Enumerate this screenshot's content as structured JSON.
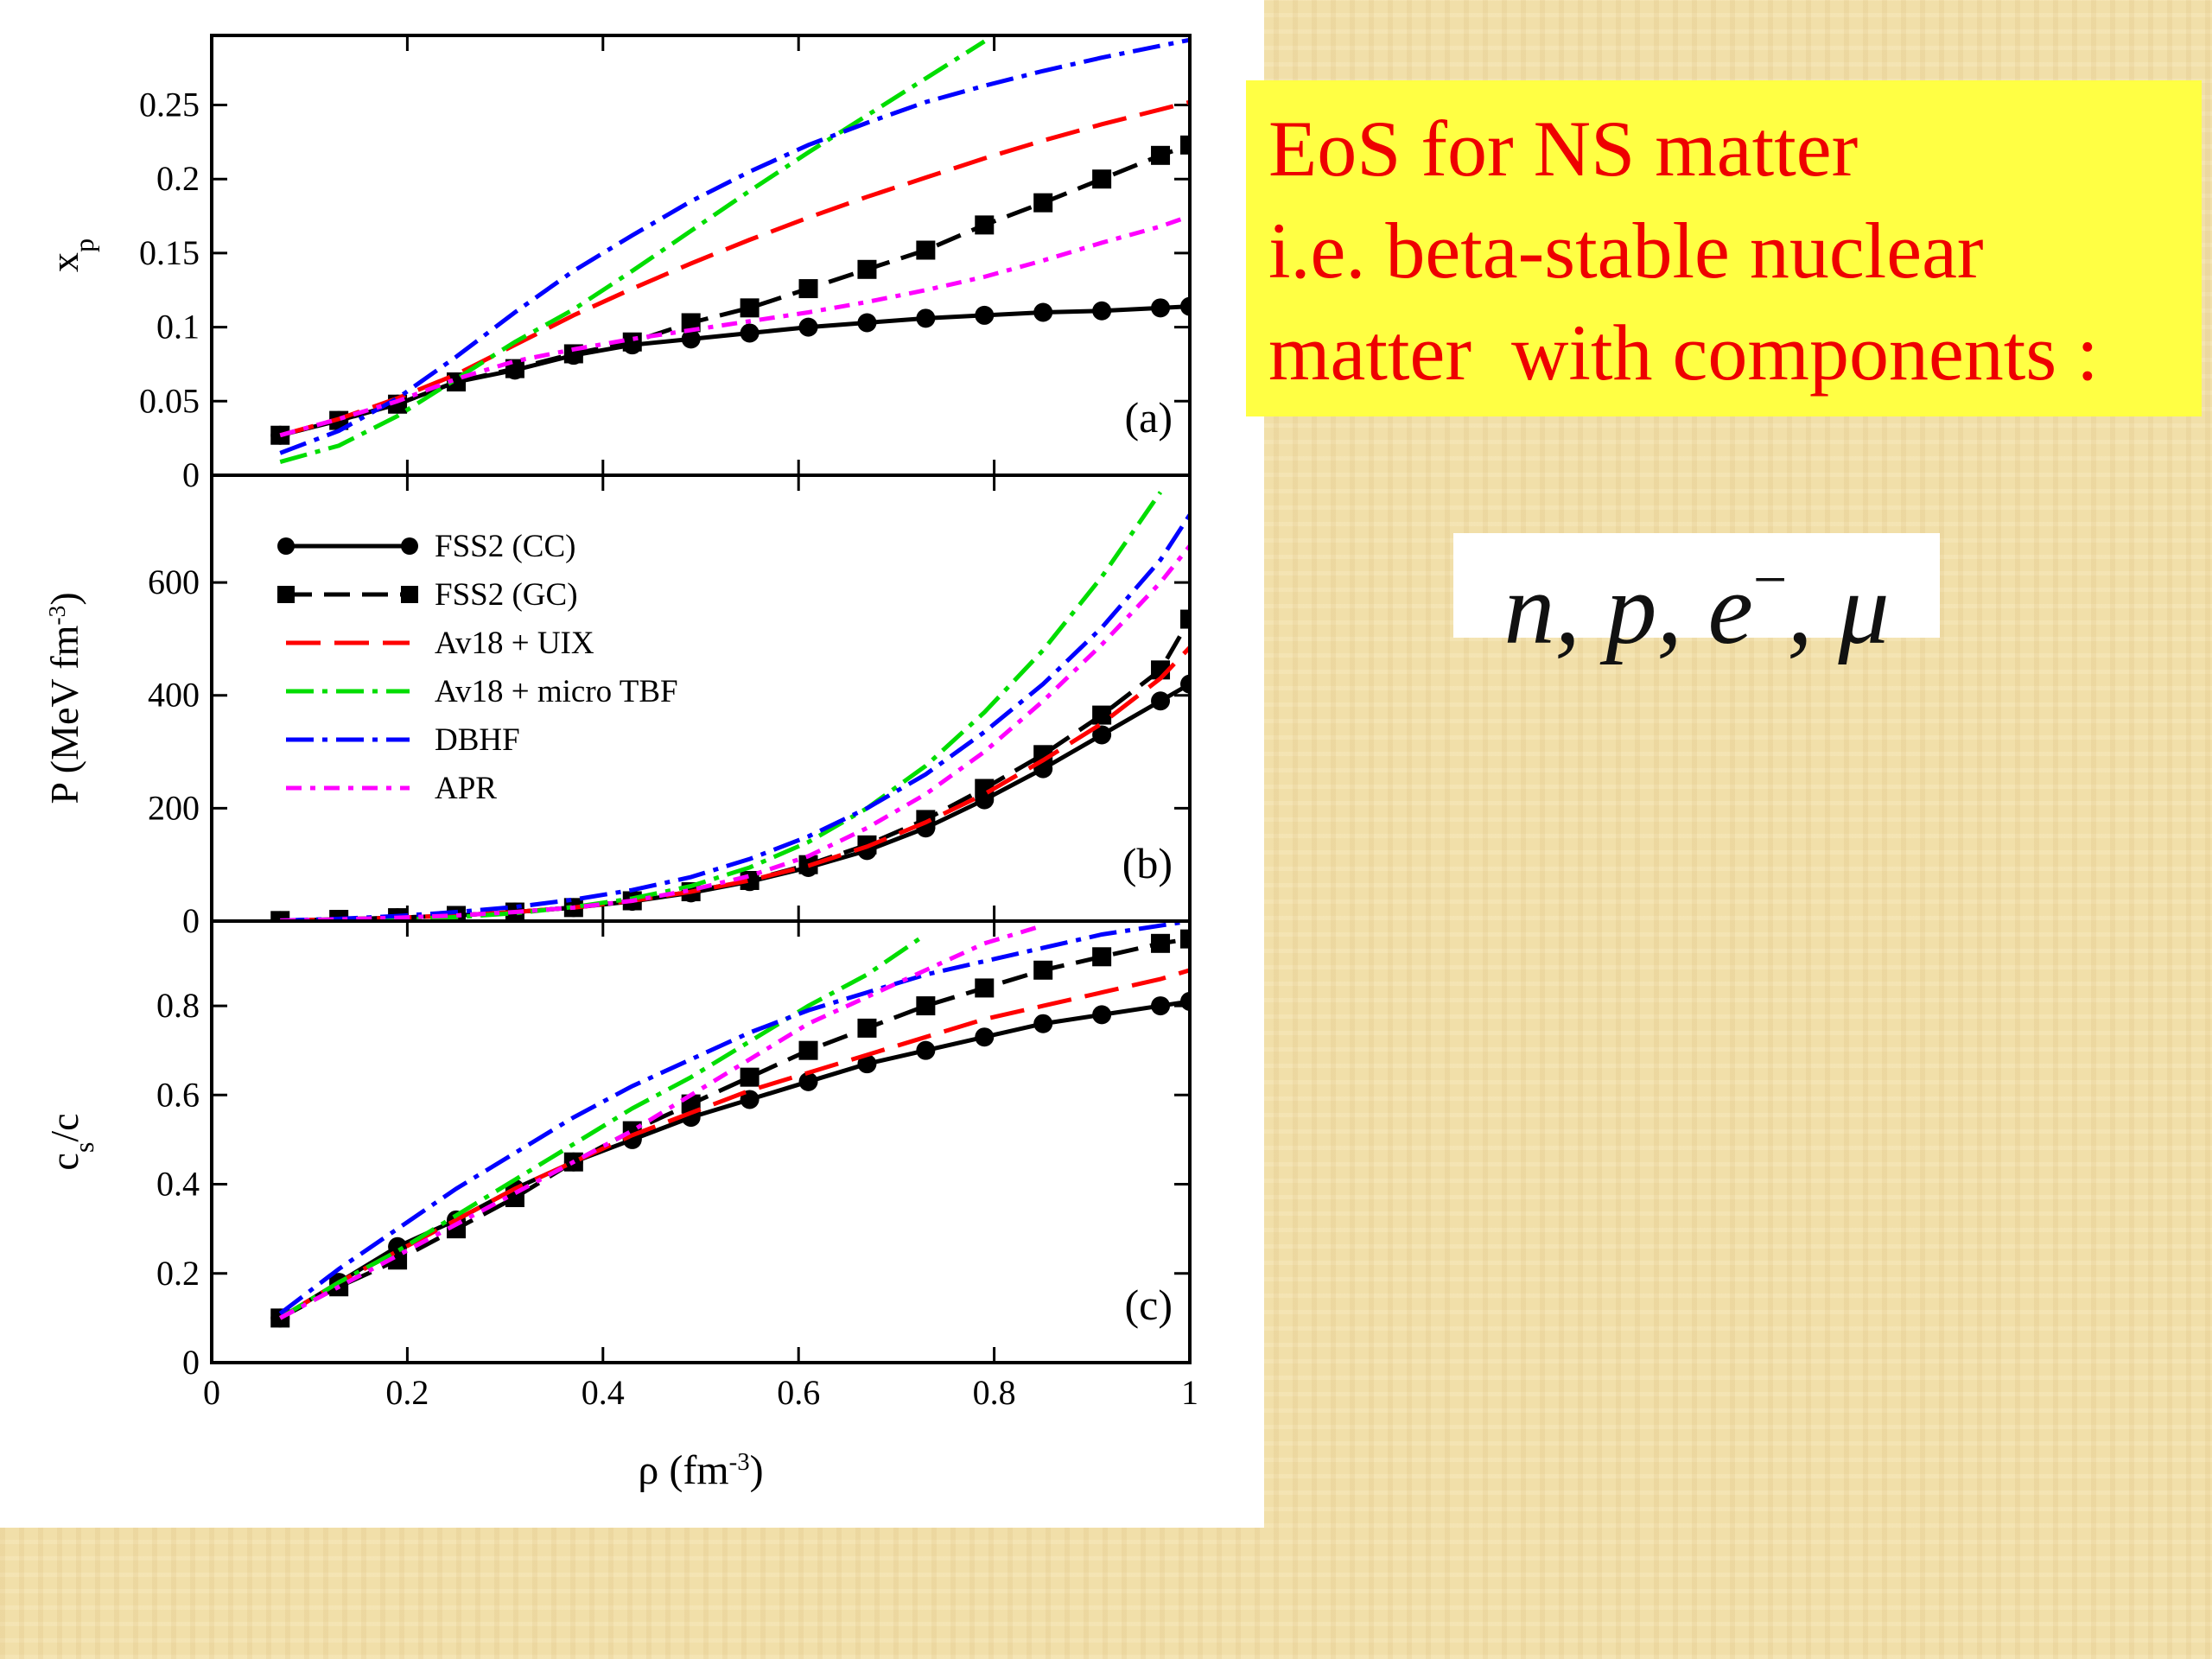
{
  "chart_data": [
    {
      "type": "line",
      "ylabel": [
        {
          "text": "x"
        },
        {
          "text": "p",
          "script": "sub"
        }
      ],
      "annotation": "(a)",
      "x": [
        0.07,
        0.13,
        0.19,
        0.25,
        0.31,
        0.37,
        0.43,
        0.49,
        0.55,
        0.61,
        0.67,
        0.73,
        0.79,
        0.85,
        0.91,
        0.97,
        1.0
      ],
      "xlim": [
        0,
        1
      ],
      "ylim": [
        0,
        0.297
      ],
      "yticks": [
        0,
        0.05,
        0.1,
        0.15,
        0.2,
        0.25
      ],
      "series": [
        {
          "color": "#000000",
          "dash": "solid",
          "marker": "circle",
          "values": [
            0.027,
            0.037,
            0.048,
            0.063,
            0.071,
            0.081,
            0.088,
            0.092,
            0.096,
            0.1,
            0.103,
            0.106,
            0.108,
            0.11,
            0.111,
            0.113,
            0.114
          ]
        },
        {
          "color": "#000000",
          "dash": "dash",
          "marker": "square",
          "values": [
            0.027,
            0.037,
            0.048,
            0.063,
            0.072,
            0.082,
            0.09,
            0.103,
            0.113,
            0.126,
            0.139,
            0.152,
            0.169,
            0.184,
            0.2,
            0.216,
            0.223
          ]
        },
        {
          "color": "#ff0000",
          "dash": "longdash",
          "marker": "none",
          "values": [
            0.027,
            0.038,
            0.052,
            0.068,
            0.088,
            0.108,
            0.126,
            0.143,
            0.159,
            0.174,
            0.188,
            0.201,
            0.214,
            0.226,
            0.237,
            0.247,
            0.252
          ]
        },
        {
          "color": "#00dd00",
          "dash": "dashdot",
          "marker": "none",
          "values": [
            0.009,
            0.02,
            0.04,
            0.065,
            0.09,
            0.112,
            0.138,
            0.165,
            0.192,
            0.218,
            0.243,
            0.268,
            0.293,
            null,
            null,
            null,
            null
          ]
        },
        {
          "color": "#0000ff",
          "dash": "dashdot",
          "marker": "none",
          "values": [
            0.015,
            0.03,
            0.052,
            0.08,
            0.11,
            0.138,
            0.162,
            0.185,
            0.205,
            0.223,
            0.238,
            0.252,
            0.263,
            0.273,
            0.282,
            0.29,
            0.294
          ]
        },
        {
          "color": "#ff00ff",
          "dash": "dotdash",
          "marker": "none",
          "values": [
            0.027,
            0.038,
            0.05,
            0.065,
            0.077,
            0.085,
            0.092,
            0.098,
            0.104,
            0.11,
            0.117,
            0.125,
            0.134,
            0.145,
            0.157,
            0.168,
            0.175
          ]
        }
      ]
    },
    {
      "type": "line",
      "ylabel": [
        {
          "text": "P (MeV fm"
        },
        {
          "text": "-3",
          "script": "sup"
        },
        {
          "text": ")"
        }
      ],
      "annotation": "(b)",
      "legend": "upper left",
      "x": [
        0.07,
        0.13,
        0.19,
        0.25,
        0.31,
        0.37,
        0.43,
        0.49,
        0.55,
        0.61,
        0.67,
        0.73,
        0.79,
        0.85,
        0.91,
        0.97,
        1.0
      ],
      "xlim": [
        0,
        1
      ],
      "ylim": [
        0,
        790
      ],
      "yticks": [
        0,
        200,
        400,
        600
      ],
      "series": [
        {
          "name": "FSS2 (CC)",
          "color": "#000000",
          "dash": "solid",
          "marker": "circle",
          "values": [
            1,
            3,
            6,
            10,
            16,
            24,
            35,
            50,
            70,
            95,
            125,
            165,
            215,
            270,
            330,
            390,
            420
          ]
        },
        {
          "name": "FSS2 (GC)",
          "color": "#000000",
          "dash": "dash",
          "marker": "square",
          "values": [
            1,
            3,
            6,
            10,
            16,
            24,
            36,
            52,
            72,
            100,
            135,
            180,
            235,
            295,
            365,
            445,
            535
          ]
        },
        {
          "name": "Av18 + UIX",
          "color": "#ff0000",
          "dash": "longdash",
          "marker": "none",
          "values": [
            1,
            3,
            6,
            10,
            16,
            24,
            36,
            52,
            72,
            98,
            132,
            175,
            225,
            285,
            350,
            430,
            485
          ]
        },
        {
          "name": "Av18 + micro TBF",
          "color": "#00dd00",
          "dash": "dashdot",
          "marker": "none",
          "values": [
            0,
            1,
            3,
            7,
            14,
            25,
            40,
            62,
            95,
            140,
            200,
            275,
            370,
            480,
            610,
            760,
            null
          ]
        },
        {
          "name": "DBHF",
          "color": "#0000ff",
          "dash": "dashdot",
          "marker": "none",
          "values": [
            1,
            4,
            9,
            16,
            25,
            38,
            55,
            78,
            110,
            150,
            200,
            260,
            335,
            420,
            520,
            640,
            720
          ]
        },
        {
          "name": "APR",
          "color": "#ff00ff",
          "dash": "dotdash",
          "marker": "none",
          "values": [
            1,
            3,
            6,
            10,
            16,
            24,
            36,
            55,
            80,
            115,
            165,
            225,
            300,
            390,
            490,
            600,
            665
          ]
        }
      ]
    },
    {
      "type": "line",
      "ylabel": [
        {
          "text": "c"
        },
        {
          "text": "s",
          "script": "sub"
        },
        {
          "text": "/c"
        }
      ],
      "annotation": "(c)",
      "xlabel": [
        {
          "text": "ρ (fm"
        },
        {
          "text": "-3",
          "script": "sup"
        },
        {
          "text": ")"
        }
      ],
      "x": [
        0.07,
        0.13,
        0.19,
        0.25,
        0.31,
        0.37,
        0.43,
        0.49,
        0.55,
        0.61,
        0.67,
        0.73,
        0.79,
        0.85,
        0.91,
        0.97,
        1.0
      ],
      "xlim": [
        0,
        1
      ],
      "xticks": [
        0,
        0.2,
        0.4,
        0.6,
        0.8,
        1
      ],
      "ylim": [
        0,
        0.99
      ],
      "yticks": [
        0,
        0.2,
        0.4,
        0.6,
        0.8
      ],
      "series": [
        {
          "color": "#000000",
          "dash": "solid",
          "marker": "circle",
          "values": [
            0.1,
            0.18,
            0.26,
            0.32,
            0.39,
            0.45,
            0.5,
            0.55,
            0.59,
            0.63,
            0.67,
            0.7,
            0.73,
            0.76,
            0.78,
            0.8,
            0.81
          ]
        },
        {
          "color": "#000000",
          "dash": "dash",
          "marker": "square",
          "values": [
            0.1,
            0.17,
            0.23,
            0.3,
            0.37,
            0.45,
            0.52,
            0.58,
            0.64,
            0.7,
            0.75,
            0.8,
            0.84,
            0.88,
            0.91,
            0.94,
            0.95
          ]
        },
        {
          "color": "#ff0000",
          "dash": "longdash",
          "marker": "none",
          "values": [
            0.1,
            0.18,
            0.25,
            0.32,
            0.39,
            0.45,
            0.51,
            0.56,
            0.61,
            0.65,
            0.69,
            0.73,
            0.77,
            0.8,
            0.83,
            0.86,
            0.88
          ]
        },
        {
          "color": "#00dd00",
          "dash": "dashdot",
          "marker": "none",
          "values": [
            0.1,
            0.18,
            0.25,
            0.33,
            0.41,
            0.49,
            0.57,
            0.64,
            0.72,
            0.8,
            0.87,
            0.96,
            null,
            null,
            null,
            null,
            null
          ]
        },
        {
          "color": "#0000ff",
          "dash": "dashdot",
          "marker": "none",
          "values": [
            0.11,
            0.21,
            0.3,
            0.39,
            0.47,
            0.55,
            0.62,
            0.68,
            0.74,
            0.79,
            0.83,
            0.87,
            0.9,
            0.93,
            0.96,
            0.98,
            0.99
          ]
        },
        {
          "color": "#ff00ff",
          "dash": "dotdash",
          "marker": "none",
          "values": [
            0.1,
            0.17,
            0.24,
            0.31,
            0.38,
            0.45,
            0.52,
            0.6,
            0.68,
            0.76,
            0.82,
            0.88,
            0.94,
            0.98,
            null,
            null,
            null
          ]
        }
      ]
    }
  ],
  "text_box": {
    "lines": [
      "EoS for NS matter",
      "i.e. beta-stable nuclear",
      "matter  with components :"
    ]
  },
  "formula": {
    "parts": [
      {
        "text": "n, p, e"
      },
      {
        "text": "−",
        "script": "sup"
      },
      {
        "text": ", μ"
      }
    ]
  }
}
